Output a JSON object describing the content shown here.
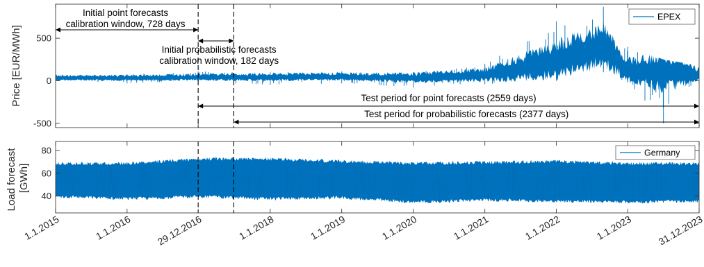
{
  "chart_data": [
    {
      "type": "line",
      "xlabel": "",
      "ylabel": "Price [EUR/MWh]",
      "ylim": [
        -550,
        900
      ],
      "yticks": [
        -500,
        0,
        500
      ],
      "legend": {
        "placement": "top-right",
        "entries": [
          "EPEX"
        ]
      },
      "series": [
        {
          "name": "EPEX",
          "color": "#0072BD",
          "approx_envelope_by_date": [
            {
              "date": "2015-01-01",
              "low": -20,
              "high": 80,
              "typical": 32
            },
            {
              "date": "2016-01-01",
              "low": -30,
              "high": 75,
              "typical": 30
            },
            {
              "date": "2016-12-29",
              "low": -10,
              "high": 110,
              "typical": 38
            },
            {
              "date": "2018-01-01",
              "low": -50,
              "high": 100,
              "typical": 40
            },
            {
              "date": "2019-01-01",
              "low": -30,
              "high": 110,
              "typical": 45
            },
            {
              "date": "2020-01-01",
              "low": -80,
              "high": 100,
              "typical": 30
            },
            {
              "date": "2021-01-01",
              "low": -40,
              "high": 200,
              "typical": 60
            },
            {
              "date": "2022-01-01",
              "low": 0,
              "high": 700,
              "typical": 220
            },
            {
              "date": "2022-08-29",
              "low": 100,
              "high": 870,
              "typical": 400
            },
            {
              "date": "2023-01-01",
              "low": -20,
              "high": 400,
              "typical": 110
            },
            {
              "date": "2023-07-02",
              "low": -500,
              "high": 250,
              "typical": 90
            },
            {
              "date": "2023-12-31",
              "low": -30,
              "high": 180,
              "typical": 70
            }
          ]
        }
      ],
      "annotations": [
        {
          "text_lines": [
            "Initial point forecasts",
            "calibration window, 728 days"
          ],
          "from": "2015-01-01",
          "to": "2016-12-29"
        },
        {
          "text_lines": [
            "Initial probabilistic forecasts",
            "calibration window, 182 days"
          ],
          "from": "2016-12-29",
          "to": "2017-06-29"
        },
        {
          "text_lines": [
            "Test period for point forecasts (2559 days)"
          ],
          "from": "2016-12-29",
          "to": "2023-12-31"
        },
        {
          "text_lines": [
            "Test period for probabilistic forecasts (2377 days)"
          ],
          "from": "2017-06-29",
          "to": "2023-12-31"
        }
      ],
      "vertical_markers": [
        "2016-12-29",
        "2017-06-29"
      ]
    },
    {
      "type": "line",
      "xlabel": "",
      "ylabel_lines": [
        "Load forecast",
        "[GWh]"
      ],
      "ylim": [
        25,
        88
      ],
      "yticks": [
        40,
        60,
        80
      ],
      "legend": {
        "placement": "top-right",
        "entries": [
          "Germany"
        ]
      },
      "series": [
        {
          "name": "Germany",
          "color": "#0072BD",
          "approx_envelope_by_date": [
            {
              "date": "2015-01-01",
              "low": 38,
              "high": 70
            },
            {
              "date": "2016-01-01",
              "low": 36,
              "high": 70
            },
            {
              "date": "2016-12-29",
              "low": 38,
              "high": 74
            },
            {
              "date": "2018-01-01",
              "low": 36,
              "high": 74
            },
            {
              "date": "2019-01-01",
              "low": 37,
              "high": 72
            },
            {
              "date": "2020-01-01",
              "low": 33,
              "high": 70
            },
            {
              "date": "2021-01-01",
              "low": 35,
              "high": 71
            },
            {
              "date": "2022-01-01",
              "low": 34,
              "high": 72
            },
            {
              "date": "2023-01-01",
              "low": 33,
              "high": 70
            },
            {
              "date": "2023-12-31",
              "low": 34,
              "high": 70
            }
          ]
        }
      ],
      "vertical_markers": [
        "2016-12-29",
        "2017-06-29"
      ]
    }
  ],
  "x_axis": {
    "tick_labels": [
      "1.1.2015",
      "1.1.2016",
      "29.12.2016",
      "1.1.2018",
      "1.1.2019",
      "1.1.2020",
      "1.1.2021",
      "1.1.2022",
      "1.1.2023",
      "31.12.2023"
    ],
    "tick_dates": [
      "2015-01-01",
      "2016-01-01",
      "2016-12-29",
      "2018-01-01",
      "2019-01-01",
      "2020-01-01",
      "2021-01-01",
      "2022-01-01",
      "2023-01-01",
      "2023-12-31"
    ],
    "range": [
      "2015-01-01",
      "2023-12-31"
    ]
  }
}
